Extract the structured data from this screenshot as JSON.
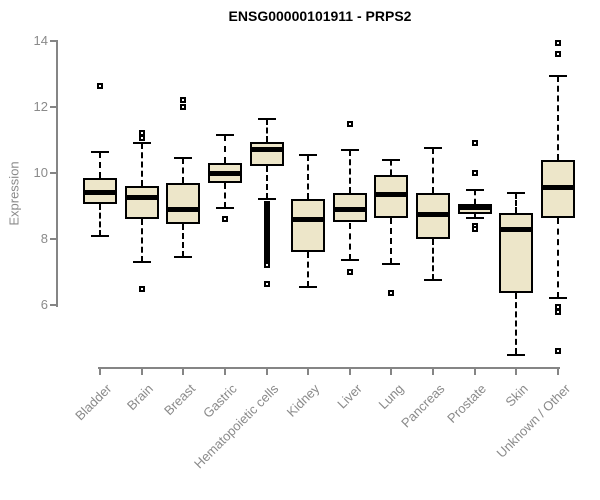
{
  "chart_data": {
    "type": "boxplot",
    "title": "ENSG00000101911 - PRPS2",
    "ylabel": "Expression",
    "xlabel": "",
    "ylim": [
      6,
      14
    ],
    "yticks": [
      6,
      8,
      10,
      12,
      14
    ],
    "grid": false,
    "legend": "none",
    "categories": [
      "Bladder",
      "Brain",
      "Breast",
      "Gastric",
      "Hematopoietic cells",
      "Kidney",
      "Liver",
      "Lung",
      "Pancreas",
      "Prostate",
      "Skin",
      "Unknown / Other"
    ],
    "series": [
      {
        "category": "Bladder",
        "whisker_low": 8.1,
        "q1": 9.05,
        "median": 9.4,
        "q3": 9.85,
        "whisker_high": 10.65,
        "outliers": [
          12.65
        ]
      },
      {
        "category": "Brain",
        "whisker_low": 7.3,
        "q1": 8.6,
        "median": 9.25,
        "q3": 9.6,
        "whisker_high": 10.9,
        "outliers": [
          11.2,
          11.05,
          6.5
        ]
      },
      {
        "category": "Breast",
        "whisker_low": 7.45,
        "q1": 8.45,
        "median": 8.9,
        "q3": 9.7,
        "whisker_high": 10.45,
        "outliers": [
          12.2,
          12.0
        ]
      },
      {
        "category": "Gastric",
        "whisker_low": 8.95,
        "q1": 9.7,
        "median": 10.0,
        "q3": 10.3,
        "whisker_high": 11.15,
        "outliers": [
          8.6
        ]
      },
      {
        "category": "Hematopoietic cells",
        "whisker_low": 9.2,
        "q1": 10.2,
        "median": 10.7,
        "q3": 10.95,
        "whisker_high": 11.65,
        "outliers": [
          9.05,
          9.0,
          8.95,
          8.9,
          8.85,
          8.8,
          8.75,
          8.7,
          8.65,
          8.6,
          8.55,
          8.5,
          8.45,
          8.4,
          8.35,
          8.3,
          8.25,
          8.2,
          8.15,
          8.1,
          8.05,
          8.0,
          7.95,
          7.9,
          7.85,
          7.8,
          7.75,
          7.7,
          7.65,
          7.6,
          7.55,
          7.5,
          7.45,
          7.4,
          7.35,
          7.3,
          7.25,
          7.2,
          6.65
        ]
      },
      {
        "category": "Kidney",
        "whisker_low": 6.55,
        "q1": 7.6,
        "median": 8.6,
        "q3": 9.2,
        "whisker_high": 10.55,
        "outliers": []
      },
      {
        "category": "Liver",
        "whisker_low": 7.35,
        "q1": 8.5,
        "median": 8.9,
        "q3": 9.4,
        "whisker_high": 10.7,
        "outliers": [
          11.5,
          7.0
        ]
      },
      {
        "category": "Lung",
        "whisker_low": 7.25,
        "q1": 8.65,
        "median": 9.35,
        "q3": 9.95,
        "whisker_high": 10.4,
        "outliers": [
          6.35
        ]
      },
      {
        "category": "Pancreas",
        "whisker_low": 6.75,
        "q1": 8.0,
        "median": 8.75,
        "q3": 9.4,
        "whisker_high": 10.75,
        "outliers": []
      },
      {
        "category": "Prostate",
        "whisker_low": 8.65,
        "q1": 8.75,
        "median": 8.95,
        "q3": 9.05,
        "whisker_high": 9.5,
        "outliers": [
          10.9,
          10.0,
          8.4,
          8.3
        ]
      },
      {
        "category": "Skin",
        "whisker_low": 4.5,
        "q1": 6.35,
        "median": 8.3,
        "q3": 8.8,
        "whisker_high": 9.4,
        "outliers": []
      },
      {
        "category": "Unknown / Other",
        "whisker_low": 6.2,
        "q1": 8.65,
        "median": 9.55,
        "q3": 10.4,
        "whisker_high": 12.95,
        "outliers": [
          13.95,
          13.6,
          5.95,
          5.8,
          4.6
        ]
      }
    ]
  },
  "colors": {
    "background": "#FFFFFF",
    "box_fill": "#EDE6C9",
    "box_border": "#000000",
    "median": "#000000",
    "whisker": "#000000",
    "outlier_border": "#000000",
    "axis": "#858585",
    "tick_label": "#8A8A8A",
    "title": "#000000"
  }
}
